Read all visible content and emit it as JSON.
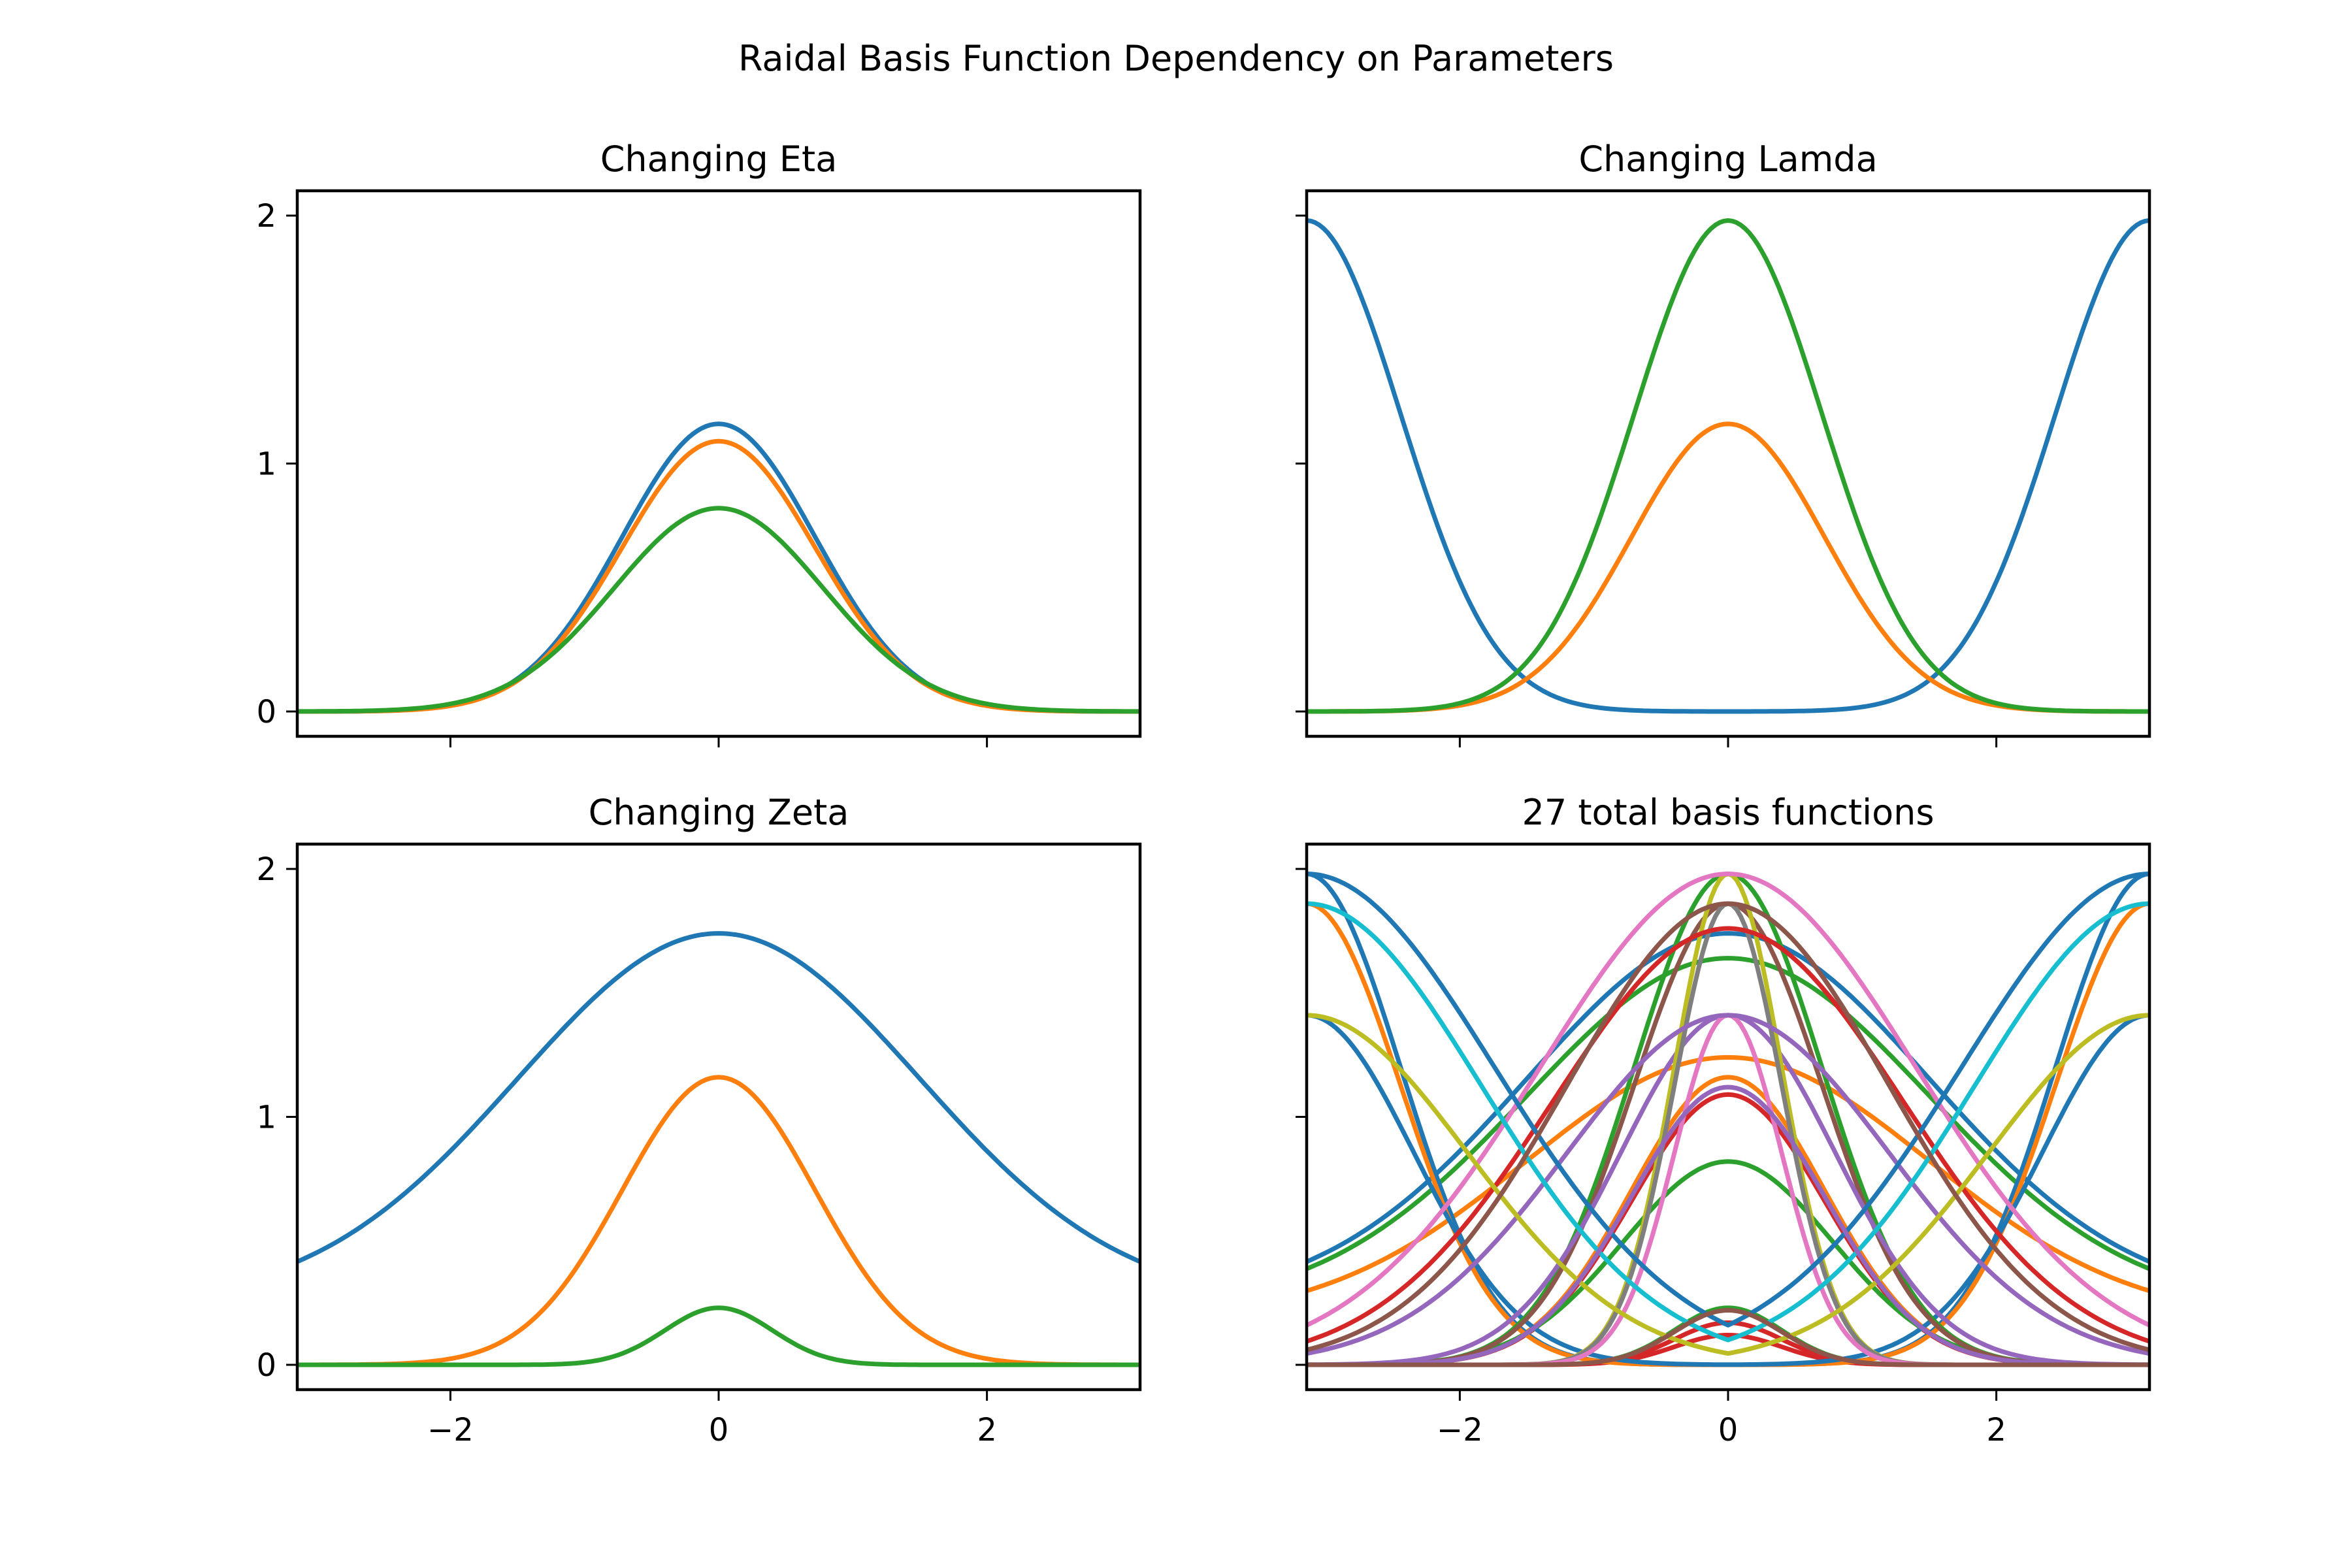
{
  "figure": {
    "suptitle": "Raidal Basis Function Dependency on Parameters"
  },
  "palette": [
    "#1f77b4",
    "#ff7f0e",
    "#2ca02c",
    "#d62728",
    "#9467bd",
    "#8c564b",
    "#e377c2",
    "#7f7f7f",
    "#bcbd22",
    "#17becf"
  ],
  "chart_data": [
    {
      "type": "line",
      "title": "Changing Eta",
      "xlim": [
        -3.1416,
        3.1416
      ],
      "ylim": [
        -0.1,
        2.1
      ],
      "xticks": [
        -2,
        0,
        2
      ],
      "xticklabels": [
        "",
        "",
        ""
      ],
      "yticks": [
        0,
        1,
        2
      ],
      "yticklabels": [
        "0",
        "1",
        "2"
      ],
      "x_range": [
        -3.1416,
        3.1416
      ],
      "series": [
        {
          "peak_y": 1.16,
          "peak_x": 0,
          "baseline": 0.0,
          "width": 0.72,
          "color": "#1f77b4"
        },
        {
          "peak_y": 1.09,
          "peak_x": 0,
          "baseline": 0.0,
          "width": 0.72,
          "color": "#ff7f0e"
        },
        {
          "peak_y": 0.82,
          "peak_x": 0,
          "baseline": 0.0,
          "width": 0.78,
          "color": "#2ca02c"
        }
      ]
    },
    {
      "type": "line",
      "title": "Changing Lamda",
      "xlim": [
        -3.1416,
        3.1416
      ],
      "ylim": [
        -0.1,
        2.1
      ],
      "xticks": [
        -2,
        0,
        2
      ],
      "xticklabels": [
        "",
        "",
        ""
      ],
      "yticks": [
        0,
        1,
        2
      ],
      "yticklabels": [
        "",
        "",
        ""
      ],
      "x_range": [
        -3.1416,
        3.1416
      ],
      "series": [
        {
          "peak_y": 1.98,
          "peak_x": 3.1416,
          "baseline": 0.0,
          "width": 0.7,
          "color": "#1f77b4"
        },
        {
          "peak_y": 1.16,
          "peak_x": 0,
          "baseline": 0.0,
          "width": 0.72,
          "color": "#ff7f0e"
        },
        {
          "peak_y": 1.98,
          "peak_x": 0,
          "baseline": 0.0,
          "width": 0.7,
          "color": "#2ca02c"
        }
      ]
    },
    {
      "type": "line",
      "title": "Changing Zeta",
      "xlim": [
        -3.1416,
        3.1416
      ],
      "ylim": [
        -0.1,
        2.1
      ],
      "xticks": [
        -2,
        0,
        2
      ],
      "xticklabels": [
        "−2",
        "0",
        "2"
      ],
      "yticks": [
        0,
        1,
        2
      ],
      "yticklabels": [
        "0",
        "1",
        "2"
      ],
      "x_range": [
        -3.1416,
        3.1416
      ],
      "series": [
        {
          "peak_y": 1.74,
          "peak_x": 0,
          "baseline": 0.25,
          "width": 1.5,
          "color": "#1f77b4"
        },
        {
          "peak_y": 1.16,
          "peak_x": 0,
          "baseline": 0.0,
          "width": 0.72,
          "color": "#ff7f0e"
        },
        {
          "peak_y": 0.23,
          "peak_x": 0,
          "baseline": 0.0,
          "width": 0.4,
          "color": "#2ca02c"
        }
      ]
    },
    {
      "type": "line",
      "title": "27 total basis functions",
      "xlim": [
        -3.1416,
        3.1416
      ],
      "ylim": [
        -0.1,
        2.1
      ],
      "xticks": [
        -2,
        0,
        2
      ],
      "xticklabels": [
        "−2",
        "0",
        "2"
      ],
      "yticks": [
        0,
        1,
        2
      ],
      "yticklabels": [
        "",
        "",
        ""
      ],
      "x_range": [
        -3.1416,
        3.1416
      ],
      "series": [
        {
          "peak_y": 1.74,
          "peak_x": 0,
          "baseline": 0.25,
          "width": 1.5,
          "color": "#1f77b4"
        },
        {
          "peak_y": 1.16,
          "peak_x": 0,
          "baseline": 0.0,
          "width": 0.72,
          "color": "#ff7f0e"
        },
        {
          "peak_y": 0.23,
          "peak_x": 0,
          "baseline": 0.0,
          "width": 0.4,
          "color": "#2ca02c"
        },
        {
          "peak_y": 1.64,
          "peak_x": 0,
          "baseline": 0.23,
          "width": 1.5,
          "color": "#2ca02c"
        },
        {
          "peak_y": 1.09,
          "peak_x": 0,
          "baseline": 0.0,
          "width": 0.72,
          "color": "#d62728"
        },
        {
          "peak_y": 0.17,
          "peak_x": 0,
          "baseline": 0.0,
          "width": 0.4,
          "color": "#d62728"
        },
        {
          "peak_y": 1.24,
          "peak_x": 0,
          "baseline": 0.18,
          "width": 1.5,
          "color": "#ff7f0e"
        },
        {
          "peak_y": 0.82,
          "peak_x": 0,
          "baseline": 0.0,
          "width": 0.78,
          "color": "#2ca02c"
        },
        {
          "peak_y": 0.12,
          "peak_x": 0,
          "baseline": 0.0,
          "width": 0.4,
          "color": "#d62728"
        },
        {
          "peak_y": 1.98,
          "peak_x": 3.1416,
          "baseline": 0.0,
          "width": 0.7,
          "color": "#1f77b4"
        },
        {
          "peak_y": 1.86,
          "peak_x": 3.1416,
          "baseline": 0.0,
          "width": 0.7,
          "color": "#ff7f0e"
        },
        {
          "peak_y": 1.41,
          "peak_x": 3.1416,
          "baseline": 0.0,
          "width": 0.8,
          "color": "#1f77b4"
        },
        {
          "peak_y": 1.98,
          "peak_x": 0,
          "baseline": 0.0,
          "width": 0.7,
          "color": "#2ca02c"
        },
        {
          "peak_y": 1.86,
          "peak_x": 0,
          "baseline": 0.0,
          "width": 0.7,
          "color": "#8c564b"
        },
        {
          "peak_y": 1.41,
          "peak_x": 0,
          "baseline": 0.0,
          "width": 0.8,
          "color": "#9467bd"
        },
        {
          "peak_y": 1.98,
          "peak_x": 0,
          "baseline": 0.0,
          "width": 0.4,
          "color": "#bcbd22"
        },
        {
          "peak_y": 1.86,
          "peak_x": 0,
          "baseline": 0.0,
          "width": 0.4,
          "color": "#7f7f7f"
        },
        {
          "peak_y": 1.41,
          "peak_x": 0,
          "baseline": 0.0,
          "width": 0.4,
          "color": "#e377c2"
        },
        {
          "peak_y": 1.98,
          "peak_x": 0,
          "baseline": 0.0,
          "width": 1.4,
          "color": "#e377c2"
        },
        {
          "peak_y": 1.76,
          "peak_x": 0,
          "baseline": 0.0,
          "width": 1.3,
          "color": "#d62728"
        },
        {
          "peak_y": 1.41,
          "peak_x": 0,
          "baseline": 0.0,
          "width": 1.2,
          "color": "#9467bd"
        },
        {
          "peak_y": 1.98,
          "peak_x": 3.1416,
          "baseline": 0.0,
          "width": 1.4,
          "color": "#1f77b4"
        },
        {
          "peak_y": 1.86,
          "peak_x": 3.1416,
          "baseline": 0.0,
          "width": 1.3,
          "color": "#17becf"
        },
        {
          "peak_y": 1.41,
          "peak_x": 3.1416,
          "baseline": 0.0,
          "width": 1.2,
          "color": "#bcbd22"
        },
        {
          "peak_y": 1.12,
          "peak_x": 0,
          "baseline": 0.0,
          "width": 0.72,
          "color": "#9467bd"
        },
        {
          "peak_y": 0.22,
          "peak_x": 0,
          "baseline": 0.0,
          "width": 0.4,
          "color": "#8c564b"
        },
        {
          "peak_y": 1.86,
          "peak_x": 0,
          "baseline": 0.0,
          "width": 1.2,
          "color": "#8c564b"
        }
      ]
    }
  ]
}
